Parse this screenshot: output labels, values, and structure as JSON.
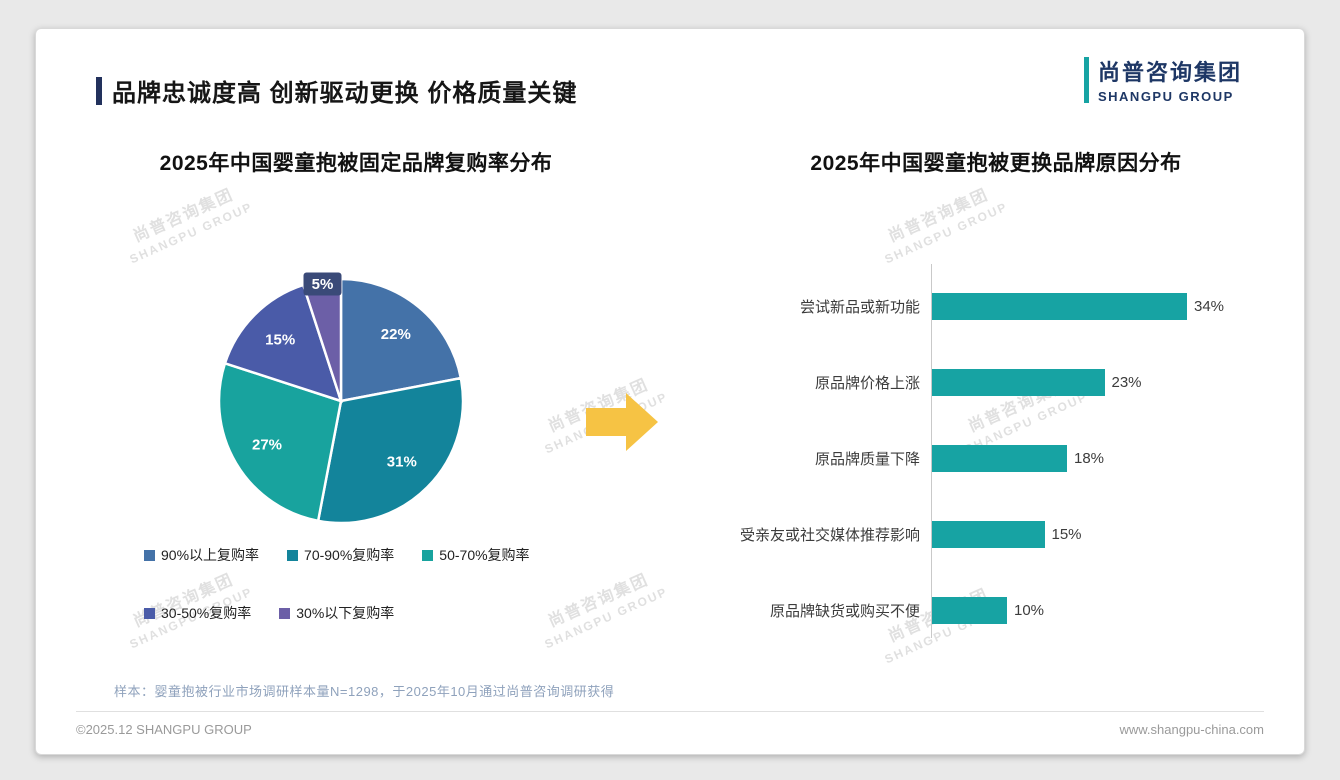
{
  "page": {
    "title": "品牌忠诚度高 创新驱动更换 价格质量关键",
    "logo": {
      "cn": "尚普咨询集团",
      "en": "SHANGPU GROUP"
    },
    "watermark": {
      "cn": "尚普咨询集团",
      "en": "SHANGPU GROUP"
    },
    "note": "样本：婴童抱被行业市场调研样本量N=1298，于2025年10月通过尚普咨询调研获得",
    "footer": {
      "copyright": "©2025.12 SHANGPU GROUP",
      "website": "www.shangpu-china.com"
    }
  },
  "colors": {
    "accent_teal": "#16A3A3",
    "logo_navy": "#1E3765",
    "arrow_yellow": "#F6C344",
    "pie_small_label_bg": "#3A4A78",
    "bar_teal": "#17A3A3"
  },
  "chart_data": [
    {
      "type": "pie",
      "title": "2025年中国婴童抱被固定品牌复购率分布",
      "labels": [
        "90%以上复购率",
        "70-90%复购率",
        "50-70%复购率",
        "30-50%复购率",
        "30%以下复购率"
      ],
      "values": [
        22,
        31,
        27,
        15,
        5
      ],
      "data_labels": [
        "22%",
        "31%",
        "27%",
        "15%",
        "5%"
      ],
      "colors": [
        "#4472A8",
        "#13849B",
        "#18A39E",
        "#4A5BA8",
        "#6C5FA7"
      ],
      "start_angle_deg": -90,
      "direction": "clockwise",
      "legend_position": "bottom"
    },
    {
      "type": "bar",
      "orientation": "horizontal",
      "title": "2025年中国婴童抱被更换品牌原因分布",
      "categories": [
        "尝试新品或新功能",
        "原品牌价格上涨",
        "原品牌质量下降",
        "受亲友或社交媒体推荐影响",
        "原品牌缺货或购买不便"
      ],
      "values": [
        34,
        23,
        18,
        15,
        10
      ],
      "value_suffix": "%",
      "bar_color": "#17A3A3",
      "xlim": [
        0,
        40
      ],
      "grid": false
    }
  ]
}
